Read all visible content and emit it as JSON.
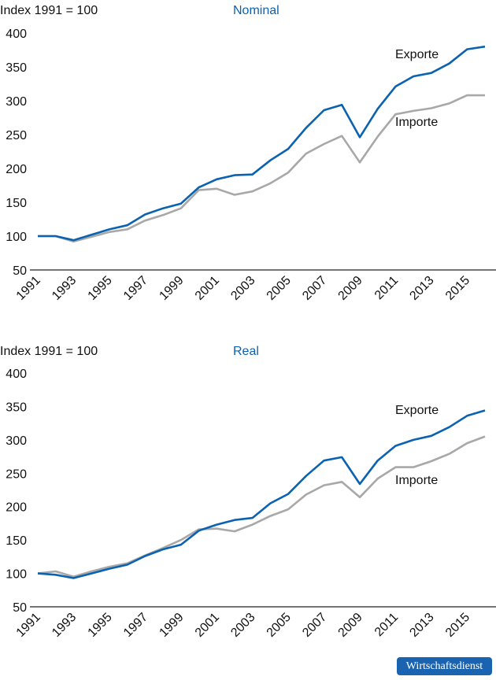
{
  "chart_data": [
    {
      "type": "line",
      "title": "Nominal",
      "ylabel": "Index 1991 = 100",
      "ylim": [
        50,
        400
      ],
      "yticks": [
        "400",
        "350",
        "300",
        "250",
        "200",
        "150",
        "100",
        "50"
      ],
      "x": [
        1991,
        1992,
        1993,
        1994,
        1995,
        1996,
        1997,
        1998,
        1999,
        2000,
        2001,
        2002,
        2003,
        2004,
        2005,
        2006,
        2007,
        2008,
        2009,
        2010,
        2011,
        2012,
        2013,
        2014,
        2015,
        2016
      ],
      "xticks": [
        "1991",
        "1993",
        "1995",
        "1997",
        "1999",
        "2001",
        "2003",
        "2005",
        "2007",
        "2009",
        "2011",
        "2013",
        "2015"
      ],
      "series": [
        {
          "name": "Exporte",
          "color": "#0a62b0",
          "values": [
            100,
            100,
            94,
            102,
            110,
            116,
            132,
            141,
            148,
            172,
            184,
            190,
            191,
            212,
            229,
            260,
            286,
            294,
            246,
            288,
            321,
            336,
            341,
            355,
            376,
            380
          ]
        },
        {
          "name": "Importe",
          "color": "#a8a8a8",
          "values": [
            100,
            100,
            92,
            99,
            106,
            110,
            123,
            131,
            141,
            168,
            170,
            161,
            166,
            178,
            194,
            222,
            236,
            248,
            209,
            247,
            280,
            285,
            289,
            296,
            308,
            308
          ]
        }
      ]
    },
    {
      "type": "line",
      "title": "Real",
      "ylabel": "Index 1991 = 100",
      "ylim": [
        50,
        400
      ],
      "yticks": [
        "400",
        "350",
        "300",
        "250",
        "200",
        "150",
        "100",
        "50"
      ],
      "x": [
        1991,
        1992,
        1993,
        1994,
        1995,
        1996,
        1997,
        1998,
        1999,
        2000,
        2001,
        2002,
        2003,
        2004,
        2005,
        2006,
        2007,
        2008,
        2009,
        2010,
        2011,
        2012,
        2013,
        2014,
        2015,
        2016
      ],
      "xticks": [
        "1991",
        "1993",
        "1995",
        "1997",
        "1999",
        "2001",
        "2003",
        "2005",
        "2007",
        "2009",
        "2011",
        "2013",
        "2015"
      ],
      "series": [
        {
          "name": "Exporte",
          "color": "#0a62b0",
          "values": [
            100,
            98,
            93,
            100,
            107,
            113,
            126,
            136,
            143,
            164,
            173,
            180,
            183,
            205,
            219,
            246,
            269,
            274,
            234,
            269,
            291,
            300,
            306,
            319,
            336,
            344
          ]
        },
        {
          "name": "Importe",
          "color": "#a8a8a8",
          "values": [
            100,
            103,
            95,
            103,
            110,
            115,
            127,
            138,
            150,
            166,
            167,
            163,
            173,
            186,
            196,
            218,
            232,
            237,
            214,
            242,
            259,
            259,
            268,
            279,
            295,
            305
          ]
        }
      ]
    }
  ],
  "logo": "Wirtschaftsdienst",
  "title_color": "#0a62b0"
}
